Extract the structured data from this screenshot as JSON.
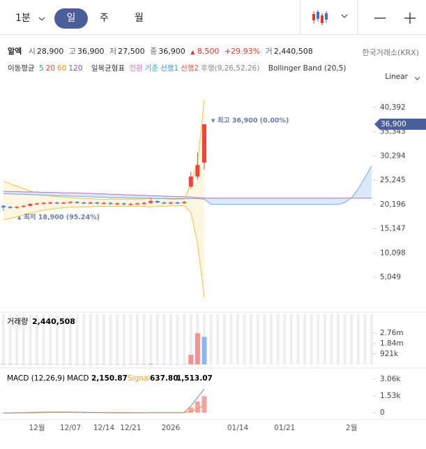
{
  "toolbar": {
    "interval": "1분",
    "tabs": [
      "일",
      "주",
      "월"
    ],
    "scale": "Linear"
  },
  "info": {
    "name": "알엑",
    "fields": [
      {
        "label": "시",
        "value": "28,900"
      },
      {
        "label": "고",
        "value": "36,900"
      },
      {
        "label": "저",
        "value": "27,500"
      },
      {
        "label": "종",
        "value": "36,900"
      }
    ],
    "change": "8,500",
    "change_rate": "+29.93%",
    "volume_label": "거",
    "volume": "2,440,508",
    "exchange": "한국거래소(KRX)"
  },
  "legend": {
    "ma": {
      "name": "이동평균",
      "items": [
        {
          "label": "5",
          "color": "#3aa845"
        },
        {
          "label": "20",
          "color": "#e8463c"
        },
        {
          "label": "60",
          "color": "#f08c00"
        },
        {
          "label": "120",
          "color": "#7b57c7"
        }
      ]
    },
    "ichimoku": {
      "name": "일목균형표",
      "items": [
        {
          "label": "전환",
          "color": "#d874d8"
        },
        {
          "label": "기준",
          "color": "#22b0c8"
        },
        {
          "label": "선행1",
          "color": "#3a8fd8"
        },
        {
          "label": "선행2",
          "color": "#e0574a"
        },
        {
          "label": "후행(9,26,52,26)",
          "color": "#888888"
        }
      ]
    },
    "bollinger": "Bollinger Band (20,5)"
  },
  "chart_data": [
    {
      "type": "candlestick",
      "up_color": "#f0433a",
      "down_color": "#3d7fd9",
      "open": [
        19900,
        19700,
        19500,
        19700,
        19900,
        20300,
        20400,
        20500,
        20600,
        20500,
        20600,
        20700,
        20600,
        20500,
        20600,
        20400,
        20500,
        20300,
        20400,
        20200,
        20300,
        20400,
        20500,
        20900,
        20600,
        20500,
        20600,
        20500,
        23900,
        26000,
        28900,
        null,
        null,
        null,
        null,
        null,
        null,
        null,
        null,
        null,
        null,
        null,
        null,
        null,
        null,
        null,
        null,
        null,
        null,
        null,
        null,
        null,
        null,
        null,
        null,
        null
      ],
      "high": [
        20100,
        19900,
        19900,
        20100,
        20500,
        20600,
        20700,
        20800,
        20800,
        20800,
        20900,
        20900,
        20800,
        20800,
        20800,
        20700,
        20700,
        20600,
        20600,
        20500,
        20600,
        20700,
        21600,
        21100,
        20800,
        20800,
        20800,
        20900,
        27000,
        31000,
        36900,
        null,
        null,
        null,
        null,
        null,
        null,
        null,
        null,
        null,
        null,
        null,
        null,
        null,
        null,
        null,
        null,
        null,
        null,
        null,
        null,
        null,
        null,
        null,
        null,
        null
      ],
      "low": [
        18900,
        19300,
        19300,
        19500,
        19700,
        20100,
        20200,
        20300,
        20300,
        20300,
        20400,
        20400,
        20300,
        20300,
        20200,
        20200,
        20100,
        20100,
        20000,
        20000,
        20100,
        20200,
        20300,
        20400,
        20300,
        20300,
        20300,
        20300,
        23500,
        25400,
        27500,
        null,
        null,
        null,
        null,
        null,
        null,
        null,
        null,
        null,
        null,
        null,
        null,
        null,
        null,
        null,
        null,
        null,
        null,
        null,
        null,
        null,
        null,
        null,
        null,
        null
      ],
      "close": [
        19600,
        19500,
        19700,
        19900,
        20300,
        20400,
        20500,
        20600,
        20500,
        20600,
        20700,
        20600,
        20500,
        20600,
        20400,
        20500,
        20300,
        20400,
        20200,
        20300,
        20400,
        20500,
        20900,
        20600,
        20500,
        20600,
        20500,
        20700,
        26000,
        28400,
        36900,
        null,
        null,
        null,
        null,
        null,
        null,
        null,
        null,
        null,
        null,
        null,
        null,
        null,
        null,
        null,
        null,
        null,
        null,
        null,
        null,
        null,
        null,
        null,
        null,
        null
      ],
      "bollinger_color": "#f3c43d",
      "bollinger_upper": [
        25000,
        24500,
        24000,
        23500,
        23000,
        22600,
        22300,
        22000,
        21800,
        21700,
        21600,
        21500,
        21400,
        21400,
        21300,
        21300,
        21300,
        21300,
        21300,
        21300,
        21300,
        21300,
        21500,
        21400,
        21400,
        21300,
        21300,
        21300,
        24500,
        29000,
        42000,
        null,
        null,
        null,
        null,
        null,
        null,
        null,
        null,
        null,
        null,
        null,
        null,
        null,
        null,
        null,
        null,
        null,
        null,
        null,
        null,
        null,
        null,
        null,
        null,
        null
      ],
      "bollinger_lower": [
        17000,
        17300,
        17600,
        18000,
        18400,
        18700,
        19000,
        19200,
        19400,
        19500,
        19600,
        19700,
        19700,
        19700,
        19800,
        19800,
        19800,
        19800,
        19800,
        19800,
        19800,
        19800,
        19700,
        19800,
        19800,
        19900,
        19900,
        19900,
        18500,
        12000,
        800,
        null,
        null,
        null,
        null,
        null,
        null,
        null,
        null,
        null,
        null,
        null,
        null,
        null,
        null,
        null,
        null,
        null,
        null,
        null,
        null,
        null,
        null,
        null,
        null,
        null
      ],
      "span_a_color": "#7aa7e0",
      "span_b_color": "#c96fa0",
      "cloud_color": "#cfe4f7",
      "span_a": [
        22400,
        22400,
        22300,
        22300,
        22200,
        22200,
        22100,
        22100,
        22000,
        22000,
        21900,
        21900,
        21800,
        21800,
        21700,
        21700,
        21600,
        21600,
        21600,
        21500,
        21500,
        21500,
        21500,
        21400,
        21400,
        21400,
        21400,
        21400,
        21400,
        21400,
        21300,
        20200,
        20200,
        20200,
        20200,
        20200,
        20200,
        20200,
        20200,
        20200,
        20200,
        20200,
        20200,
        20200,
        20200,
        20200,
        20200,
        20200,
        20200,
        20200,
        20200,
        20600,
        21600,
        23400,
        25800,
        28200
      ],
      "span_b": [
        22900,
        22900,
        22900,
        22800,
        22800,
        22800,
        22700,
        22700,
        22700,
        22600,
        22600,
        22600,
        22500,
        22500,
        22400,
        22400,
        22300,
        22300,
        22200,
        22200,
        22100,
        22100,
        22000,
        22000,
        21900,
        21900,
        21800,
        21800,
        21700,
        21600,
        21500,
        21500,
        21500,
        21500,
        21500,
        21500,
        21500,
        21500,
        21500,
        21500,
        21500,
        21500,
        21500,
        21500,
        21500,
        21500,
        21500,
        21500,
        21500,
        21500,
        21500,
        21500,
        21500,
        21500,
        21500,
        21500
      ],
      "ylim": [
        -1200,
        42400
      ],
      "yticks": [
        {
          "value": 40392,
          "label": "40,392"
        },
        {
          "value": 35343,
          "label": "35,343"
        },
        {
          "value": 30294,
          "label": "30,294"
        },
        {
          "value": 25245,
          "label": "25,245"
        },
        {
          "value": 20196,
          "label": "20,196"
        },
        {
          "value": 15147,
          "label": "15,147"
        },
        {
          "value": 10098,
          "label": "10,098"
        },
        {
          "value": 5049,
          "label": "5,049"
        }
      ],
      "current": {
        "value": 36900,
        "label": "36,900"
      },
      "annotations": [
        {
          "text": "최고 36,900 (0.00%)",
          "value": 36900,
          "direction": "down"
        },
        {
          "text": "최저 18,900 (95.24%)",
          "value": 18900,
          "direction": "up"
        }
      ]
    },
    {
      "type": "bar",
      "title": "거래량",
      "value_text": "2,440,508",
      "up_color": "#f29393",
      "down_color": "#8ab8ea",
      "values": [
        40000,
        35000,
        30000,
        30000,
        25000,
        30000,
        20000,
        25000,
        20000,
        20000,
        25000,
        20000,
        20000,
        15000,
        20000,
        20000,
        15000,
        20000,
        15000,
        20000,
        20000,
        25000,
        60000,
        25000,
        20000,
        15000,
        20000,
        30000,
        850000,
        2750000,
        2440508,
        null,
        null,
        null,
        null,
        null,
        null,
        null,
        null,
        null,
        null,
        null,
        null,
        null,
        null,
        null,
        null,
        null,
        null,
        null,
        null,
        null,
        null,
        null,
        null,
        null
      ],
      "ylim": [
        0,
        4420000
      ],
      "yticks": [
        {
          "value": 2760000,
          "label": "2.76m"
        },
        {
          "value": 1840000,
          "label": "1.84m"
        },
        {
          "value": 921000,
          "label": "921k"
        }
      ]
    },
    {
      "type": "macd",
      "title": "MACD (12,26,9)",
      "macd_label": "MACD",
      "macd_value": "2,150.87",
      "signal_label": "Signal",
      "signal_value": "637.80",
      "hist_value": "1,513.07",
      "categories": [
        null,
        null,
        null,
        null,
        null,
        "12월",
        null,
        null,
        null,
        null,
        "12/07",
        null,
        null,
        null,
        null,
        "12/14",
        null,
        null,
        null,
        "12/21",
        null,
        null,
        null,
        null,
        null,
        "2026",
        null,
        null,
        null,
        null,
        null,
        null,
        null,
        null,
        null,
        "01/14",
        null,
        null,
        null,
        null,
        null,
        null,
        "01/21",
        null,
        null,
        null,
        null,
        null,
        null,
        null,
        null,
        null,
        "2월",
        null,
        null,
        null
      ],
      "macd_color": "#9a9a9a",
      "signal_color": "#f39c33",
      "hist_up_color": "#f4a3a3",
      "hist_down_color": "#9cc3ee",
      "macd": [
        -40,
        -30,
        -20,
        0,
        20,
        40,
        50,
        60,
        60,
        55,
        50,
        40,
        30,
        20,
        10,
        0,
        -10,
        -15,
        -20,
        -20,
        -15,
        -10,
        10,
        10,
        5,
        5,
        5,
        10,
        600,
        1400,
        2150.87,
        null,
        null,
        null,
        null,
        null,
        null,
        null,
        null,
        null,
        null,
        null,
        null,
        null,
        null,
        null,
        null,
        null,
        null,
        null,
        null,
        null,
        null,
        null,
        null,
        null
      ],
      "signal": [
        -20,
        -22,
        -22,
        -18,
        -10,
        0,
        10,
        20,
        28,
        33,
        36,
        37,
        36,
        33,
        28,
        22,
        16,
        10,
        4,
        0,
        -3,
        -4,
        -2,
        0,
        1,
        2,
        3,
        4,
        120,
        380,
        637.8,
        null,
        null,
        null,
        null,
        null,
        null,
        null,
        null,
        null,
        null,
        null,
        null,
        null,
        null,
        null,
        null,
        null,
        null,
        null,
        null,
        null,
        null,
        null,
        null,
        null
      ],
      "histogram": [
        -20,
        -8,
        2,
        18,
        30,
        40,
        40,
        40,
        32,
        22,
        14,
        3,
        -6,
        -13,
        -18,
        -22,
        -26,
        -25,
        -24,
        -20,
        -12,
        -6,
        12,
        10,
        4,
        3,
        2,
        6,
        480,
        1020,
        1513.07,
        null,
        null,
        null,
        null,
        null,
        null,
        null,
        null,
        null,
        null,
        null,
        null,
        null,
        null,
        null,
        null,
        null,
        null,
        null,
        null,
        null,
        null,
        null,
        null,
        null
      ],
      "ylim": [
        -574,
        3889
      ],
      "yticks": [
        {
          "value": 3060,
          "label": "3.06k"
        },
        {
          "value": 1530,
          "label": "1.53k"
        },
        0
      ]
    }
  ]
}
